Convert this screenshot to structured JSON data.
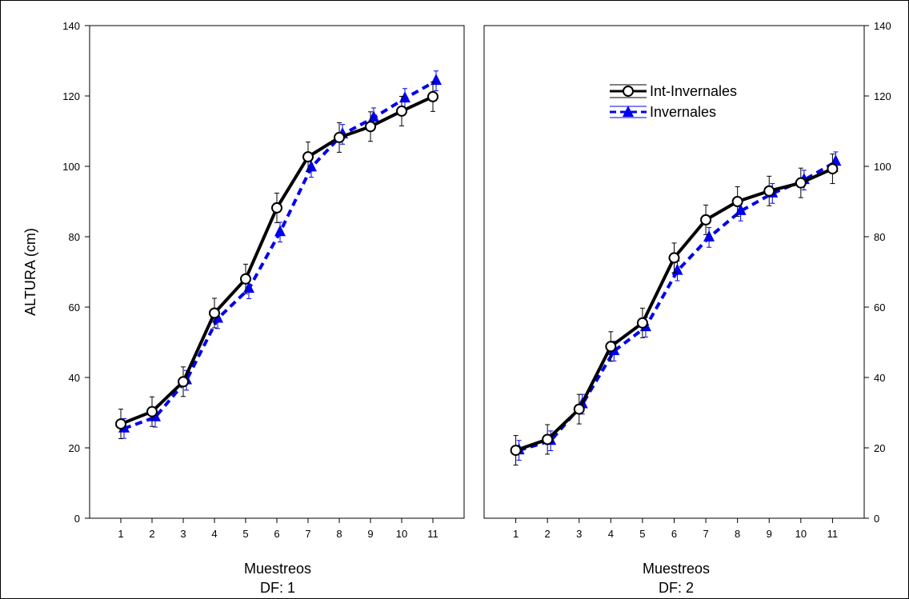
{
  "chart_data": [
    {
      "type": "line",
      "panel": "DF: 1",
      "ylabel": "ALTURA  (cm)",
      "xlabel": "Muestreos",
      "subtitle": "DF: 1",
      "ylim": [
        0,
        140
      ],
      "yticks": [
        0,
        20,
        40,
        60,
        80,
        100,
        120,
        140
      ],
      "categories": [
        "1",
        "2",
        "3",
        "4",
        "5",
        "6",
        "7",
        "8",
        "9",
        "10",
        "11"
      ],
      "series": [
        {
          "name": "Int-Invernales",
          "color": "#000000",
          "style": "solid",
          "marker": "open-circle",
          "values": [
            26.8,
            30.3,
            38.8,
            58.3,
            68.0,
            88.2,
            102.7,
            108.2,
            111.3,
            115.7,
            119.8
          ],
          "errors": [
            4.2,
            4.2,
            4.2,
            4.2,
            4.2,
            4.2,
            4.2,
            4.2,
            4.2,
            4.2,
            4.2
          ]
        },
        {
          "name": "Invernales",
          "color": "#0000ee",
          "style": "dashed",
          "marker": "filled-triangle",
          "values": [
            25.5,
            28.7,
            39.2,
            56.7,
            65.2,
            81.3,
            99.7,
            109.1,
            113.8,
            119.3,
            124.3
          ],
          "errors": [
            2.8,
            2.8,
            2.8,
            2.8,
            2.8,
            2.8,
            2.8,
            2.8,
            2.8,
            2.8,
            2.8
          ]
        }
      ]
    },
    {
      "type": "line",
      "panel": "DF: 2",
      "xlabel": "Muestreos",
      "subtitle": "DF: 2",
      "ylim": [
        0,
        140
      ],
      "yticks": [
        0,
        20,
        40,
        60,
        80,
        100,
        120,
        140
      ],
      "categories": [
        "1",
        "2",
        "3",
        "4",
        "5",
        "6",
        "7",
        "8",
        "9",
        "10",
        "11"
      ],
      "series": [
        {
          "name": "Int-Invernales",
          "color": "#000000",
          "style": "solid",
          "marker": "open-circle",
          "values": [
            19.3,
            22.4,
            31.0,
            48.8,
            55.5,
            74.0,
            84.8,
            90.0,
            93.0,
            95.3,
            99.3
          ],
          "errors": [
            4.2,
            4.2,
            4.2,
            4.2,
            4.2,
            4.2,
            4.2,
            4.2,
            4.2,
            4.2,
            4.2
          ]
        },
        {
          "name": "Invernales",
          "color": "#0000ee",
          "style": "dashed",
          "marker": "filled-triangle",
          "values": [
            19.3,
            22.0,
            32.4,
            47.5,
            54.3,
            70.3,
            79.8,
            87.3,
            92.3,
            96.1,
            101.3
          ],
          "errors": [
            2.8,
            2.8,
            2.8,
            2.8,
            2.8,
            2.8,
            2.8,
            2.8,
            2.8,
            2.8,
            2.8
          ]
        }
      ]
    }
  ],
  "legend": {
    "placement": "top-center of right panel",
    "entries": [
      "Int-Invernales",
      "Invernales"
    ]
  }
}
